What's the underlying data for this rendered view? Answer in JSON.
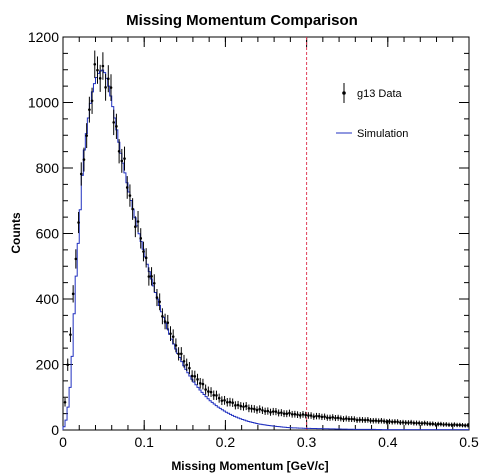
{
  "chart_data": {
    "type": "histogram",
    "title": "Missing Momentum Comparison",
    "xlabel": "Missing Momentum [GeV/c]",
    "ylabel": "Counts",
    "xlim": [
      0,
      0.5
    ],
    "ylim": [
      0,
      1200
    ],
    "x_ticks": [
      "0",
      "0.1",
      "0.2",
      "0.3",
      "0.4",
      "0.5"
    ],
    "y_ticks": [
      "0",
      "200",
      "400",
      "600",
      "800",
      "1000",
      "1200"
    ],
    "cut_line": {
      "x": 0.3,
      "color": "#e0405a"
    },
    "legend": {
      "placement": "top-right"
    },
    "series": [
      {
        "name": "g13 Data",
        "kind": "points-with-errors",
        "color": "#000000",
        "x": [
          0.0,
          0.025,
          0.03,
          0.035,
          0.04,
          0.045,
          0.05,
          0.055,
          0.06,
          0.065,
          0.07,
          0.08,
          0.09,
          0.1,
          0.11,
          0.12,
          0.13,
          0.14,
          0.15,
          0.16,
          0.17,
          0.18,
          0.19,
          0.2,
          0.21,
          0.22,
          0.23,
          0.24,
          0.25,
          0.26,
          0.27,
          0.28,
          0.29,
          0.3,
          0.32,
          0.34,
          0.36,
          0.38,
          0.4,
          0.42,
          0.44,
          0.46,
          0.48,
          0.5
        ],
        "y": [
          0,
          830,
          930,
          1020,
          1080,
          1105,
          1100,
          1060,
          1000,
          930,
          860,
          740,
          635,
          540,
          455,
          375,
          310,
          255,
          205,
          170,
          140,
          118,
          100,
          88,
          80,
          73,
          67,
          62,
          58,
          55,
          52,
          49,
          47,
          45,
          40,
          36,
          32,
          29,
          26,
          23,
          21,
          18,
          16,
          14
        ]
      },
      {
        "name": "Simulation",
        "kind": "step",
        "color": "#2030c0",
        "x": [
          0.0,
          0.005,
          0.01,
          0.015,
          0.02,
          0.025,
          0.03,
          0.035,
          0.04,
          0.045,
          0.05,
          0.055,
          0.06,
          0.065,
          0.07,
          0.08,
          0.09,
          0.1,
          0.11,
          0.12,
          0.13,
          0.14,
          0.15,
          0.16,
          0.17,
          0.18,
          0.19,
          0.2,
          0.21,
          0.22,
          0.23,
          0.24,
          0.25,
          0.26,
          0.27,
          0.28,
          0.29,
          0.3,
          0.32,
          0.34,
          0.36,
          0.38,
          0.4,
          0.42,
          0.44,
          0.46,
          0.48,
          0.5
        ],
        "y": [
          0,
          40,
          160,
          420,
          620,
          830,
          930,
          1020,
          1070,
          1095,
          1100,
          1065,
          1005,
          935,
          860,
          740,
          635,
          540,
          450,
          370,
          300,
          240,
          190,
          150,
          118,
          92,
          72,
          56,
          43,
          33,
          25,
          19,
          15,
          12,
          9,
          7,
          6,
          5,
          4,
          3,
          2,
          2,
          1,
          1,
          1,
          1,
          1,
          1
        ]
      }
    ]
  }
}
